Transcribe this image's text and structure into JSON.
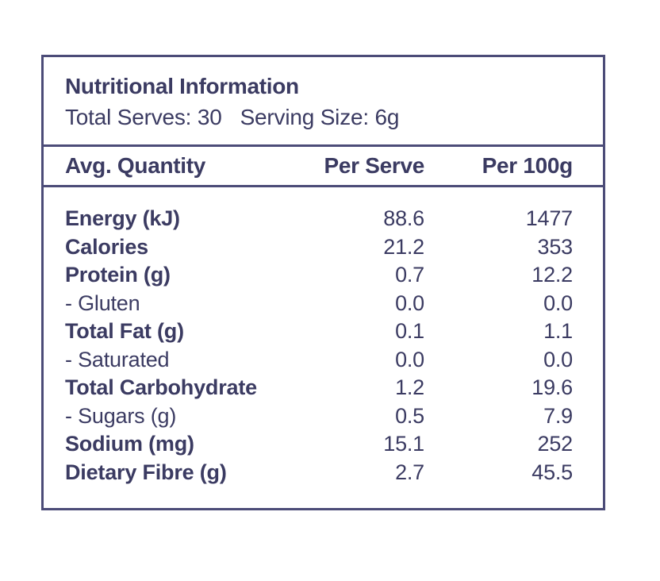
{
  "panel": {
    "title": "Nutritional Information",
    "total_serves": "Total Serves: 30",
    "serving_size": "Serving Size: 6g",
    "columns": {
      "name": "Avg. Quantity",
      "per_serve": "Per Serve",
      "per_100g": "Per 100g"
    },
    "rows": [
      {
        "label": "Energy (kJ)",
        "per_serve": "88.6",
        "per_100g": "1477",
        "emphasis": "bold"
      },
      {
        "label": "Calories",
        "per_serve": "21.2",
        "per_100g": "353",
        "emphasis": "bold"
      },
      {
        "label": "Protein (g)",
        "per_serve": "0.7",
        "per_100g": "12.2",
        "emphasis": "bold"
      },
      {
        "label": "- Gluten",
        "per_serve": "0.0",
        "per_100g": "0.0",
        "emphasis": "regular"
      },
      {
        "label": "Total Fat (g)",
        "per_serve": "0.1",
        "per_100g": "1.1",
        "emphasis": "bold"
      },
      {
        "label": "- Saturated",
        "per_serve": "0.0",
        "per_100g": "0.0",
        "emphasis": "regular"
      },
      {
        "label": "Total Carbohydrate",
        "per_serve": "1.2",
        "per_100g": "19.6",
        "emphasis": "bold"
      },
      {
        "label": "- Sugars (g)",
        "per_serve": "0.5",
        "per_100g": "7.9",
        "emphasis": "regular"
      },
      {
        "label": "Sodium (mg)",
        "per_serve": "15.1",
        "per_100g": "252",
        "emphasis": "bold"
      },
      {
        "label": "Dietary Fibre (g)",
        "per_serve": "2.7",
        "per_100g": "45.5",
        "emphasis": "bold"
      }
    ],
    "colors": {
      "text": "#3b3b62",
      "border": "#4c4c78",
      "background": "#ffffff"
    }
  }
}
